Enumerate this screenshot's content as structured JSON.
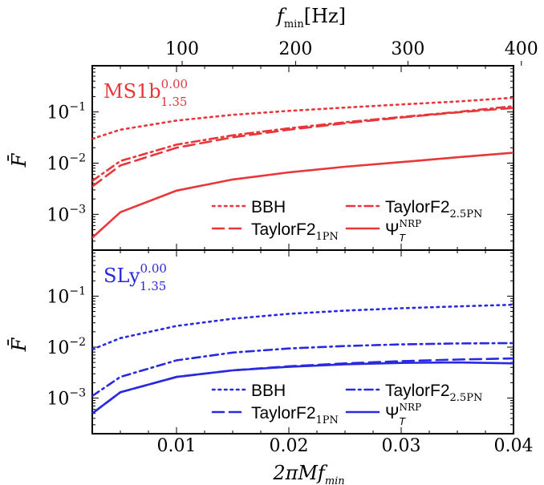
{
  "chart_data": {
    "type": "line",
    "x_range": [
      0.0025,
      0.04
    ],
    "x_ticks": [
      0.01,
      0.02,
      0.03,
      0.04
    ],
    "x_tick_labels": [
      "0.01",
      "0.02",
      "0.03",
      "0.04"
    ],
    "x_label": "2πMf",
    "x_label_sub": "min",
    "top_axis": {
      "label": "f",
      "label_sub": "min",
      "label_unit": "[Hz]",
      "tick_labels": [
        "100",
        "200",
        "300",
        "400"
      ],
      "tick_positions_x": [
        0.0105,
        0.0206,
        0.0306,
        0.0407
      ]
    },
    "y_label": "F̄",
    "y_scale": "log",
    "y_range": [
      0.0002,
      0.8
    ],
    "y_tick_labels": [
      {
        "value": 0.1,
        "base": "10",
        "exp": "−1"
      },
      {
        "value": 0.01,
        "base": "10",
        "exp": "−2"
      },
      {
        "value": 0.001,
        "base": "10",
        "exp": "−3"
      }
    ],
    "panels": [
      {
        "label": "MS1b",
        "label_sup": "0.00",
        "label_sub": "1.35",
        "color": "#e8363a",
        "series": [
          {
            "name": "BBH",
            "style": "dotted",
            "x": [
              0.0025,
              0.005,
              0.01,
              0.015,
              0.02,
              0.025,
              0.03,
              0.035,
              0.04
            ],
            "y": [
              0.03,
              0.045,
              0.068,
              0.088,
              0.105,
              0.122,
              0.14,
              0.16,
              0.19
            ]
          },
          {
            "name": "TaylorF2",
            "name_sub": "2.5PN",
            "style": "dashdot",
            "x": [
              0.0025,
              0.005,
              0.01,
              0.015,
              0.02,
              0.025,
              0.03,
              0.035,
              0.04
            ],
            "y": [
              0.0045,
              0.011,
              0.023,
              0.035,
              0.048,
              0.063,
              0.08,
              0.1,
              0.13
            ]
          },
          {
            "name": "TaylorF2",
            "name_sub": "1PN",
            "style": "dashed",
            "x": [
              0.0025,
              0.005,
              0.01,
              0.015,
              0.02,
              0.025,
              0.03,
              0.035,
              0.04
            ],
            "y": [
              0.0035,
              0.009,
              0.02,
              0.032,
              0.045,
              0.06,
              0.078,
              0.098,
              0.12
            ]
          },
          {
            "name": "Ψ",
            "name_sub": "T",
            "name_sup": "NRP",
            "style": "solid",
            "x": [
              0.0025,
              0.005,
              0.01,
              0.015,
              0.02,
              0.025,
              0.03,
              0.035,
              0.04
            ],
            "y": [
              0.00035,
              0.0011,
              0.0029,
              0.0048,
              0.0066,
              0.0085,
              0.0105,
              0.013,
              0.016
            ]
          }
        ]
      },
      {
        "label": "SLy",
        "label_sup": "0.00",
        "label_sub": "1.35",
        "color": "#2929e0",
        "series": [
          {
            "name": "BBH",
            "style": "dotted",
            "x": [
              0.0025,
              0.005,
              0.01,
              0.015,
              0.02,
              0.025,
              0.03,
              0.035,
              0.04
            ],
            "y": [
              0.009,
              0.015,
              0.026,
              0.036,
              0.045,
              0.052,
              0.058,
              0.063,
              0.068
            ]
          },
          {
            "name": "TaylorF2",
            "name_sub": "2.5PN",
            "style": "dashdot",
            "x": [
              0.0025,
              0.005,
              0.01,
              0.015,
              0.02,
              0.025,
              0.03,
              0.035,
              0.04
            ],
            "y": [
              0.0011,
              0.0026,
              0.0055,
              0.0078,
              0.0094,
              0.0105,
              0.0113,
              0.0118,
              0.012
            ]
          },
          {
            "name": "TaylorF2",
            "name_sub": "1PN",
            "style": "dashed",
            "x": [
              0.0025,
              0.005,
              0.01,
              0.015,
              0.02,
              0.025,
              0.03,
              0.035,
              0.04
            ],
            "y": [
              0.0005,
              0.0013,
              0.0026,
              0.0035,
              0.0042,
              0.0048,
              0.0053,
              0.0057,
              0.006
            ]
          },
          {
            "name": "Ψ",
            "name_sub": "T",
            "name_sup": "NRP",
            "style": "solid",
            "x": [
              0.0025,
              0.005,
              0.01,
              0.015,
              0.02,
              0.025,
              0.03,
              0.035,
              0.04
            ],
            "y": [
              0.0005,
              0.0013,
              0.0026,
              0.0035,
              0.0041,
              0.0046,
              0.0049,
              0.005,
              0.0048
            ]
          }
        ]
      }
    ]
  }
}
